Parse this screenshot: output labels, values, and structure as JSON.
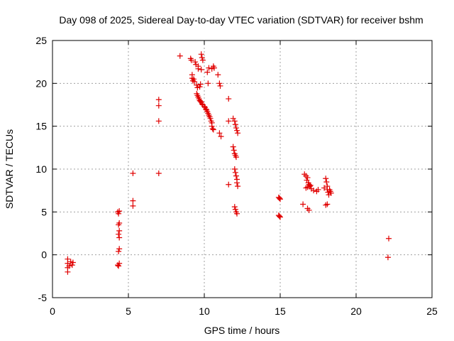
{
  "chart_data": {
    "type": "scatter",
    "title": "Day 098 of 2025, Sidereal Day-to-day VTEC variation (SDTVAR) for receiver bshm",
    "xlabel": "GPS time / hours",
    "ylabel": "SDTVAR / TECUs",
    "xlim": [
      0,
      25
    ],
    "ylim": [
      -5,
      25
    ],
    "xticks": [
      "0",
      "5",
      "10",
      "15",
      "20",
      "25"
    ],
    "yticks": [
      "-5",
      "0",
      "5",
      "10",
      "15",
      "20",
      "25"
    ],
    "grid": true,
    "marker": "plus",
    "color": "#e00000",
    "series": [
      {
        "name": "SDTVAR",
        "points": [
          [
            1.0,
            -0.5
          ],
          [
            1.0,
            -1.0
          ],
          [
            1.0,
            -1.5
          ],
          [
            1.0,
            -2.0
          ],
          [
            1.1,
            -1.3
          ],
          [
            1.2,
            -0.8
          ],
          [
            1.3,
            -1.2
          ],
          [
            1.35,
            -0.9
          ],
          [
            4.3,
            5.0
          ],
          [
            4.35,
            4.8
          ],
          [
            4.4,
            5.1
          ],
          [
            4.4,
            3.7
          ],
          [
            4.35,
            3.5
          ],
          [
            4.4,
            2.8
          ],
          [
            4.35,
            2.4
          ],
          [
            4.4,
            2.0
          ],
          [
            4.4,
            0.7
          ],
          [
            4.35,
            0.4
          ],
          [
            4.3,
            -1.2
          ],
          [
            4.4,
            -1.0
          ],
          [
            4.35,
            -1.3
          ],
          [
            5.3,
            9.5
          ],
          [
            5.3,
            6.3
          ],
          [
            5.3,
            5.7
          ],
          [
            7.0,
            18.1
          ],
          [
            7.0,
            17.4
          ],
          [
            7.0,
            15.6
          ],
          [
            7.0,
            9.5
          ],
          [
            8.4,
            23.2
          ],
          [
            9.1,
            22.9
          ],
          [
            9.15,
            22.7
          ],
          [
            9.2,
            21.0
          ],
          [
            9.2,
            20.6
          ],
          [
            9.25,
            20.3
          ],
          [
            9.3,
            20.5
          ],
          [
            9.35,
            20.2
          ],
          [
            9.4,
            22.5
          ],
          [
            9.45,
            22.2
          ],
          [
            9.5,
            19.8
          ],
          [
            9.55,
            19.5
          ],
          [
            9.6,
            22.0
          ],
          [
            9.6,
            21.7
          ],
          [
            9.7,
            19.6
          ],
          [
            9.75,
            19.9
          ],
          [
            9.8,
            23.4
          ],
          [
            9.85,
            23.0
          ],
          [
            9.8,
            21.6
          ],
          [
            9.9,
            22.7
          ],
          [
            9.5,
            18.8
          ],
          [
            9.55,
            18.6
          ],
          [
            9.6,
            18.4
          ],
          [
            9.65,
            18.2
          ],
          [
            9.7,
            18.0
          ],
          [
            9.75,
            17.9
          ],
          [
            9.8,
            17.8
          ],
          [
            9.85,
            17.6
          ],
          [
            9.9,
            17.5
          ],
          [
            10.0,
            17.3
          ],
          [
            10.05,
            17.2
          ],
          [
            10.1,
            17.0
          ],
          [
            10.15,
            16.9
          ],
          [
            10.2,
            16.7
          ],
          [
            10.25,
            16.5
          ],
          [
            10.3,
            16.3
          ],
          [
            10.35,
            16.1
          ],
          [
            10.4,
            15.9
          ],
          [
            10.45,
            15.6
          ],
          [
            10.5,
            15.4
          ],
          [
            10.5,
            15.0
          ],
          [
            10.55,
            14.7
          ],
          [
            10.6,
            14.6
          ],
          [
            10.2,
            21.3
          ],
          [
            10.3,
            21.8
          ],
          [
            10.25,
            20.0
          ],
          [
            10.5,
            21.7
          ],
          [
            10.6,
            22.0
          ],
          [
            10.65,
            21.8
          ],
          [
            10.9,
            21.0
          ],
          [
            11.0,
            20.0
          ],
          [
            11.05,
            19.7
          ],
          [
            11.0,
            14.2
          ],
          [
            11.1,
            13.8
          ],
          [
            11.6,
            18.2
          ],
          [
            11.6,
            15.6
          ],
          [
            11.6,
            8.2
          ],
          [
            11.9,
            15.9
          ],
          [
            12.0,
            15.6
          ],
          [
            12.05,
            15.2
          ],
          [
            12.1,
            14.8
          ],
          [
            12.15,
            14.5
          ],
          [
            12.2,
            14.2
          ],
          [
            11.9,
            12.6
          ],
          [
            11.95,
            12.2
          ],
          [
            12.0,
            11.8
          ],
          [
            12.05,
            11.6
          ],
          [
            12.1,
            11.4
          ],
          [
            12.0,
            10.0
          ],
          [
            12.05,
            9.6
          ],
          [
            12.1,
            9.2
          ],
          [
            12.15,
            8.8
          ],
          [
            12.15,
            8.4
          ],
          [
            12.2,
            8.0
          ],
          [
            12.0,
            5.6
          ],
          [
            12.05,
            5.3
          ],
          [
            12.1,
            5.0
          ],
          [
            12.15,
            4.8
          ],
          [
            14.9,
            6.7
          ],
          [
            14.95,
            6.6
          ],
          [
            15.0,
            6.5
          ],
          [
            14.9,
            4.6
          ],
          [
            14.95,
            4.5
          ],
          [
            15.0,
            4.4
          ],
          [
            16.6,
            9.4
          ],
          [
            16.7,
            9.2
          ],
          [
            16.8,
            9.0
          ],
          [
            16.75,
            8.7
          ],
          [
            16.85,
            8.4
          ],
          [
            16.9,
            8.2
          ],
          [
            16.95,
            8.0
          ],
          [
            16.7,
            7.8
          ],
          [
            16.8,
            7.9
          ],
          [
            17.0,
            8.1
          ],
          [
            17.05,
            7.7
          ],
          [
            17.2,
            7.5
          ],
          [
            17.4,
            7.4
          ],
          [
            17.5,
            7.6
          ],
          [
            16.5,
            5.9
          ],
          [
            16.8,
            5.4
          ],
          [
            16.9,
            5.2
          ],
          [
            17.9,
            7.8
          ],
          [
            18.0,
            8.9
          ],
          [
            18.05,
            8.5
          ],
          [
            18.1,
            8.0
          ],
          [
            18.1,
            7.6
          ],
          [
            18.15,
            7.3
          ],
          [
            18.2,
            7.0
          ],
          [
            18.25,
            7.6
          ],
          [
            18.3,
            7.4
          ],
          [
            18.35,
            7.2
          ],
          [
            18.0,
            5.8
          ],
          [
            18.1,
            5.9
          ],
          [
            22.15,
            1.9
          ],
          [
            22.1,
            -0.3
          ]
        ]
      }
    ]
  }
}
